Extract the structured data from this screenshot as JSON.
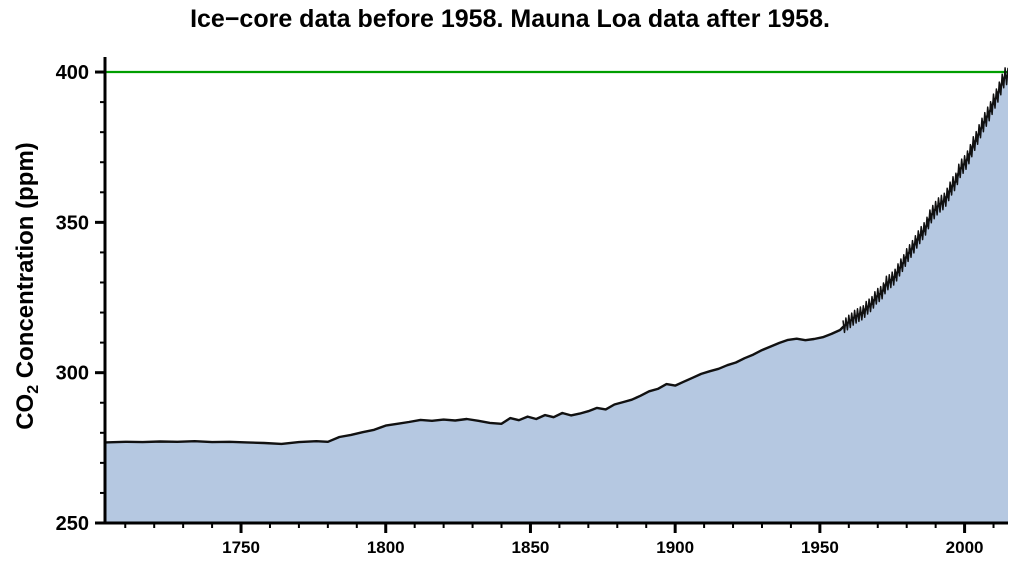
{
  "figure": {
    "title": "Ice−core data before 1958. Mauna Loa data after 1958.",
    "ylabel_prefix": "CO",
    "ylabel_sub": "2",
    "ylabel_suffix": " Concentration (ppm)"
  },
  "chart_data": {
    "type": "area",
    "title": "Ice−core data before 1958. Mauna Loa data after 1958.",
    "xlabel": "",
    "ylabel": "CO₂ Concentration (ppm)",
    "xlim": [
      1703,
      2015
    ],
    "ylim": [
      250,
      405
    ],
    "x_ticks": [
      1750,
      1800,
      1850,
      1900,
      1950,
      2000
    ],
    "y_ticks": [
      250,
      300,
      350,
      400
    ],
    "x_minor_step": 10,
    "y_minor_step": 10,
    "grid": false,
    "legend": false,
    "reference_line": {
      "value": 400,
      "orientation": "horizontal",
      "color": "#009e00"
    },
    "colors": {
      "fill": "#b5c8e1",
      "line": "#111111",
      "axis": "#000000"
    },
    "series": [
      {
        "name": "ice_core",
        "label": "Ice-core data (before 1958)",
        "points": [
          [
            1703,
            276.8
          ],
          [
            1710,
            277.0
          ],
          [
            1716,
            276.9
          ],
          [
            1722,
            277.1
          ],
          [
            1728,
            277.0
          ],
          [
            1734,
            277.2
          ],
          [
            1740,
            276.9
          ],
          [
            1746,
            277.0
          ],
          [
            1752,
            276.8
          ],
          [
            1758,
            276.6
          ],
          [
            1764,
            276.3
          ],
          [
            1770,
            276.9
          ],
          [
            1776,
            277.2
          ],
          [
            1780,
            277.0
          ],
          [
            1784,
            278.6
          ],
          [
            1788,
            279.3
          ],
          [
            1792,
            280.2
          ],
          [
            1796,
            281.0
          ],
          [
            1800,
            282.4
          ],
          [
            1804,
            283.0
          ],
          [
            1808,
            283.6
          ],
          [
            1812,
            284.3
          ],
          [
            1816,
            284.0
          ],
          [
            1820,
            284.4
          ],
          [
            1824,
            284.1
          ],
          [
            1828,
            284.6
          ],
          [
            1832,
            284.0
          ],
          [
            1836,
            283.3
          ],
          [
            1840,
            283.0
          ],
          [
            1843,
            284.9
          ],
          [
            1846,
            284.2
          ],
          [
            1849,
            285.4
          ],
          [
            1852,
            284.6
          ],
          [
            1855,
            285.9
          ],
          [
            1858,
            285.2
          ],
          [
            1861,
            286.6
          ],
          [
            1864,
            285.8
          ],
          [
            1867,
            286.4
          ],
          [
            1870,
            287.2
          ],
          [
            1873,
            288.3
          ],
          [
            1876,
            287.8
          ],
          [
            1879,
            289.4
          ],
          [
            1882,
            290.2
          ],
          [
            1885,
            291.0
          ],
          [
            1888,
            292.3
          ],
          [
            1891,
            293.8
          ],
          [
            1894,
            294.6
          ],
          [
            1897,
            296.2
          ],
          [
            1900,
            295.7
          ],
          [
            1903,
            297.0
          ],
          [
            1906,
            298.3
          ],
          [
            1909,
            299.6
          ],
          [
            1912,
            300.5
          ],
          [
            1915,
            301.3
          ],
          [
            1918,
            302.5
          ],
          [
            1921,
            303.4
          ],
          [
            1924,
            304.8
          ],
          [
            1927,
            306.0
          ],
          [
            1930,
            307.5
          ],
          [
            1933,
            308.7
          ],
          [
            1936,
            309.9
          ],
          [
            1939,
            310.9
          ],
          [
            1942,
            311.3
          ],
          [
            1945,
            310.8
          ],
          [
            1948,
            311.2
          ],
          [
            1951,
            311.8
          ],
          [
            1954,
            312.9
          ],
          [
            1957,
            314.2
          ]
        ]
      },
      {
        "name": "mauna_loa",
        "label": "Mauna Loa data (after 1958)",
        "seasonal_cycle": true,
        "seasonal_amplitude_ppm": 2.8,
        "seasonal_start_year": 1958,
        "points": [
          [
            1958,
            315.2
          ],
          [
            1959,
            316.0
          ],
          [
            1960,
            316.9
          ],
          [
            1961,
            317.6
          ],
          [
            1962,
            318.5
          ],
          [
            1963,
            319.0
          ],
          [
            1964,
            319.6
          ],
          [
            1965,
            320.0
          ],
          [
            1966,
            321.4
          ],
          [
            1967,
            322.2
          ],
          [
            1968,
            323.0
          ],
          [
            1969,
            324.6
          ],
          [
            1970,
            325.7
          ],
          [
            1971,
            326.3
          ],
          [
            1972,
            327.5
          ],
          [
            1973,
            329.7
          ],
          [
            1974,
            330.2
          ],
          [
            1975,
            331.1
          ],
          [
            1976,
            332.0
          ],
          [
            1977,
            333.8
          ],
          [
            1978,
            335.4
          ],
          [
            1979,
            336.8
          ],
          [
            1980,
            338.8
          ],
          [
            1981,
            340.1
          ],
          [
            1982,
            341.5
          ],
          [
            1983,
            343.1
          ],
          [
            1984,
            344.7
          ],
          [
            1985,
            346.1
          ],
          [
            1986,
            347.4
          ],
          [
            1987,
            349.2
          ],
          [
            1988,
            351.6
          ],
          [
            1989,
            353.1
          ],
          [
            1990,
            354.4
          ],
          [
            1991,
            355.6
          ],
          [
            1992,
            356.4
          ],
          [
            1993,
            357.1
          ],
          [
            1994,
            358.8
          ],
          [
            1995,
            360.8
          ],
          [
            1996,
            362.6
          ],
          [
            1997,
            363.7
          ],
          [
            1998,
            366.7
          ],
          [
            1999,
            368.4
          ],
          [
            2000,
            369.5
          ],
          [
            2001,
            371.1
          ],
          [
            2002,
            373.2
          ],
          [
            2003,
            375.8
          ],
          [
            2004,
            377.5
          ],
          [
            2005,
            379.8
          ],
          [
            2006,
            381.9
          ],
          [
            2007,
            383.8
          ],
          [
            2008,
            385.6
          ],
          [
            2009,
            387.4
          ],
          [
            2010,
            389.9
          ],
          [
            2011,
            391.6
          ],
          [
            2012,
            393.9
          ],
          [
            2013,
            396.5
          ],
          [
            2014,
            398.6
          ]
        ]
      }
    ]
  }
}
